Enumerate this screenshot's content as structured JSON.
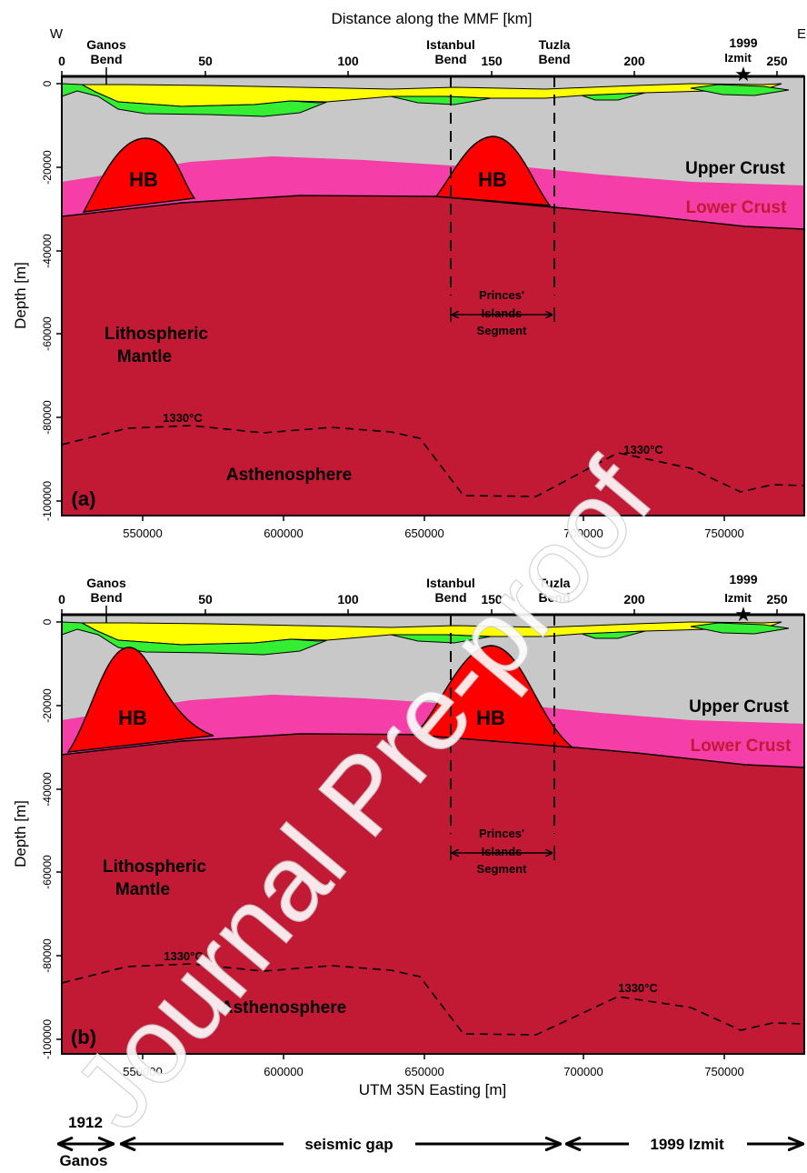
{
  "top_axis": {
    "title": "Distance along the MMF [km]",
    "west": "W",
    "east": "E",
    "ticks": [
      "0",
      "50",
      "100",
      "150",
      "200",
      "250"
    ]
  },
  "bottom_axis": {
    "title": "UTM 35N Easting [m]",
    "ticks": [
      "550000",
      "600000",
      "650000",
      "700000",
      "750000"
    ]
  },
  "y_axis": {
    "title": "Depth [m]",
    "ticks": [
      "0",
      "-20000",
      "-40000",
      "-60000",
      "-80000",
      "-100000"
    ]
  },
  "panels": [
    {
      "letter": "(a)",
      "hb_left": "HB",
      "hb_right": "HB",
      "isotherm_left": "1330°C",
      "isotherm_right": "1330°C"
    },
    {
      "letter": "(b)",
      "hb_left": "HB",
      "hb_right": "HB",
      "isotherm_left": "1330°C",
      "isotherm_right": "1330°C"
    }
  ],
  "layers": {
    "upper_crust": "Upper Crust",
    "lower_crust": "Lower Crust",
    "mantle_line1": "Lithospheric",
    "mantle_line2": "Mantle",
    "asthenosphere": "Asthenosphere"
  },
  "features": {
    "ganos_line1": "Ganos",
    "ganos_line2": "Bend",
    "istanbul_line1": "Istanbul",
    "istanbul_line2": "Bend",
    "tuzla_line1": "Tuzla",
    "tuzla_line2": "Bend",
    "izmit_year": "1999",
    "izmit_name": "Izmit",
    "princes_line1": "Princes'",
    "princes_line2": "Islands",
    "princes_line3": "Segment"
  },
  "bottom_legend": {
    "ganos_year": "1912",
    "ganos_name": "Ganos",
    "gap": "seismic gap",
    "izmit": "1999 Izmit"
  },
  "watermark": "Journal Pre-proof",
  "colors": {
    "mantle": "#c21a35",
    "lower_crust": "#f63ea8",
    "upper_crust": "#c8c8c8",
    "sediment_yellow": "#ffff00",
    "sediment_green": "#33ee33",
    "heat_body": "#ff0000"
  }
}
